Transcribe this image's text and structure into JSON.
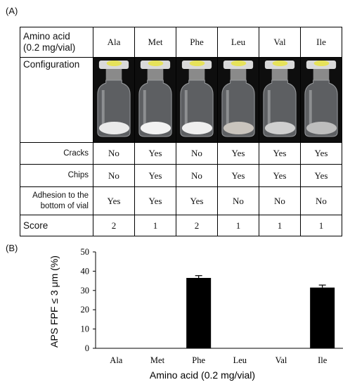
{
  "panels": {
    "a": "(A)",
    "b": "(B)"
  },
  "table": {
    "header_line1": "Amino acid",
    "header_line2": "(0.2 mg/vial)",
    "amino_acids": [
      "Ala",
      "Met",
      "Phe",
      "Leu",
      "Val",
      "Ile"
    ],
    "configuration_label": "Configuration",
    "rows": [
      {
        "label": "Cracks",
        "values": [
          "No",
          "Yes",
          "No",
          "Yes",
          "Yes",
          "Yes"
        ]
      },
      {
        "label": "Chips",
        "values": [
          "No",
          "Yes",
          "No",
          "Yes",
          "Yes",
          "Yes"
        ]
      },
      {
        "label_line1": "Adhesion to the",
        "label_line2": "bottom of vial",
        "values": [
          "Yes",
          "Yes",
          "Yes",
          "No",
          "No",
          "No"
        ]
      }
    ],
    "score_label": "Score",
    "scores": [
      "2",
      "1",
      "2",
      "1",
      "1",
      "1"
    ],
    "cake_colors": [
      "#eaeaea",
      "#f2f2f2",
      "#efefef",
      "#c9c4bd",
      "#cfcfcf",
      "#bdbdbd"
    ]
  },
  "chart_data": {
    "type": "bar",
    "categories": [
      "Ala",
      "Met",
      "Phe",
      "Leu",
      "Val",
      "Ile"
    ],
    "values": [
      0,
      0,
      36.5,
      0,
      0,
      31.5
    ],
    "errors": [
      0,
      0,
      1.2,
      0,
      0,
      1.3
    ],
    "ylim": [
      0,
      50
    ],
    "yticks": [
      0,
      10,
      20,
      30,
      40,
      50
    ],
    "xlabel": "Amino acid (0.2 mg/vial)",
    "ylabel": "APS FPF ≤ 3 μm (%)",
    "bar_color": "#000000",
    "grid": false
  }
}
